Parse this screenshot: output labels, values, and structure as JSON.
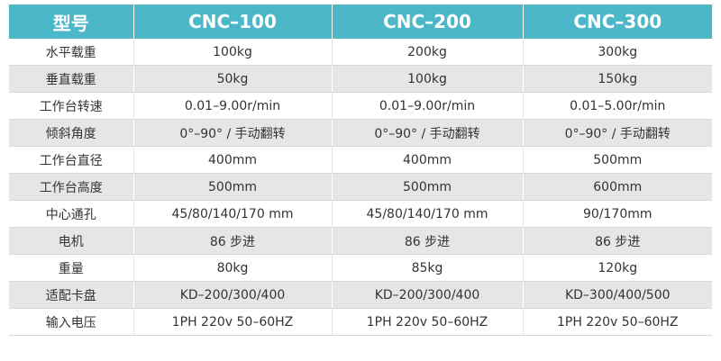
{
  "table": {
    "header": [
      "型号",
      "CNC–100",
      "CNC–200",
      "CNC–300"
    ],
    "rows": [
      [
        "水平载重",
        "100kg",
        "200kg",
        "300kg"
      ],
      [
        "垂直载重",
        "50kg",
        "100kg",
        "150kg"
      ],
      [
        "工作台转速",
        "0.01–9.00r/min",
        "0.01–9.00r/min",
        "0.01–5.00r/min"
      ],
      [
        "倾斜角度",
        "0°–90° / 手动翻转",
        "0°–90° / 手动翻转",
        "0°–90° / 手动翻转"
      ],
      [
        "工作台直径",
        "400mm",
        "400mm",
        "500mm"
      ],
      [
        "工作台高度",
        "500mm",
        "500mm",
        "600mm"
      ],
      [
        "中心通孔",
        "45/80/140/170 mm",
        "45/80/140/170 mm",
        "90/170mm"
      ],
      [
        "电机",
        "86 步进",
        "86 步进",
        "86 步进"
      ],
      [
        "重量",
        "80kg",
        "85kg",
        "120kg"
      ],
      [
        "适配卡盘",
        "KD–200/300/400",
        "KD–200/300/400",
        "KD–300/400/500"
      ],
      [
        "输入电压",
        "1PH 220v 50–60HZ",
        "1PH 220v 50–60HZ",
        "1PH 220v 50–60HZ"
      ]
    ]
  }
}
